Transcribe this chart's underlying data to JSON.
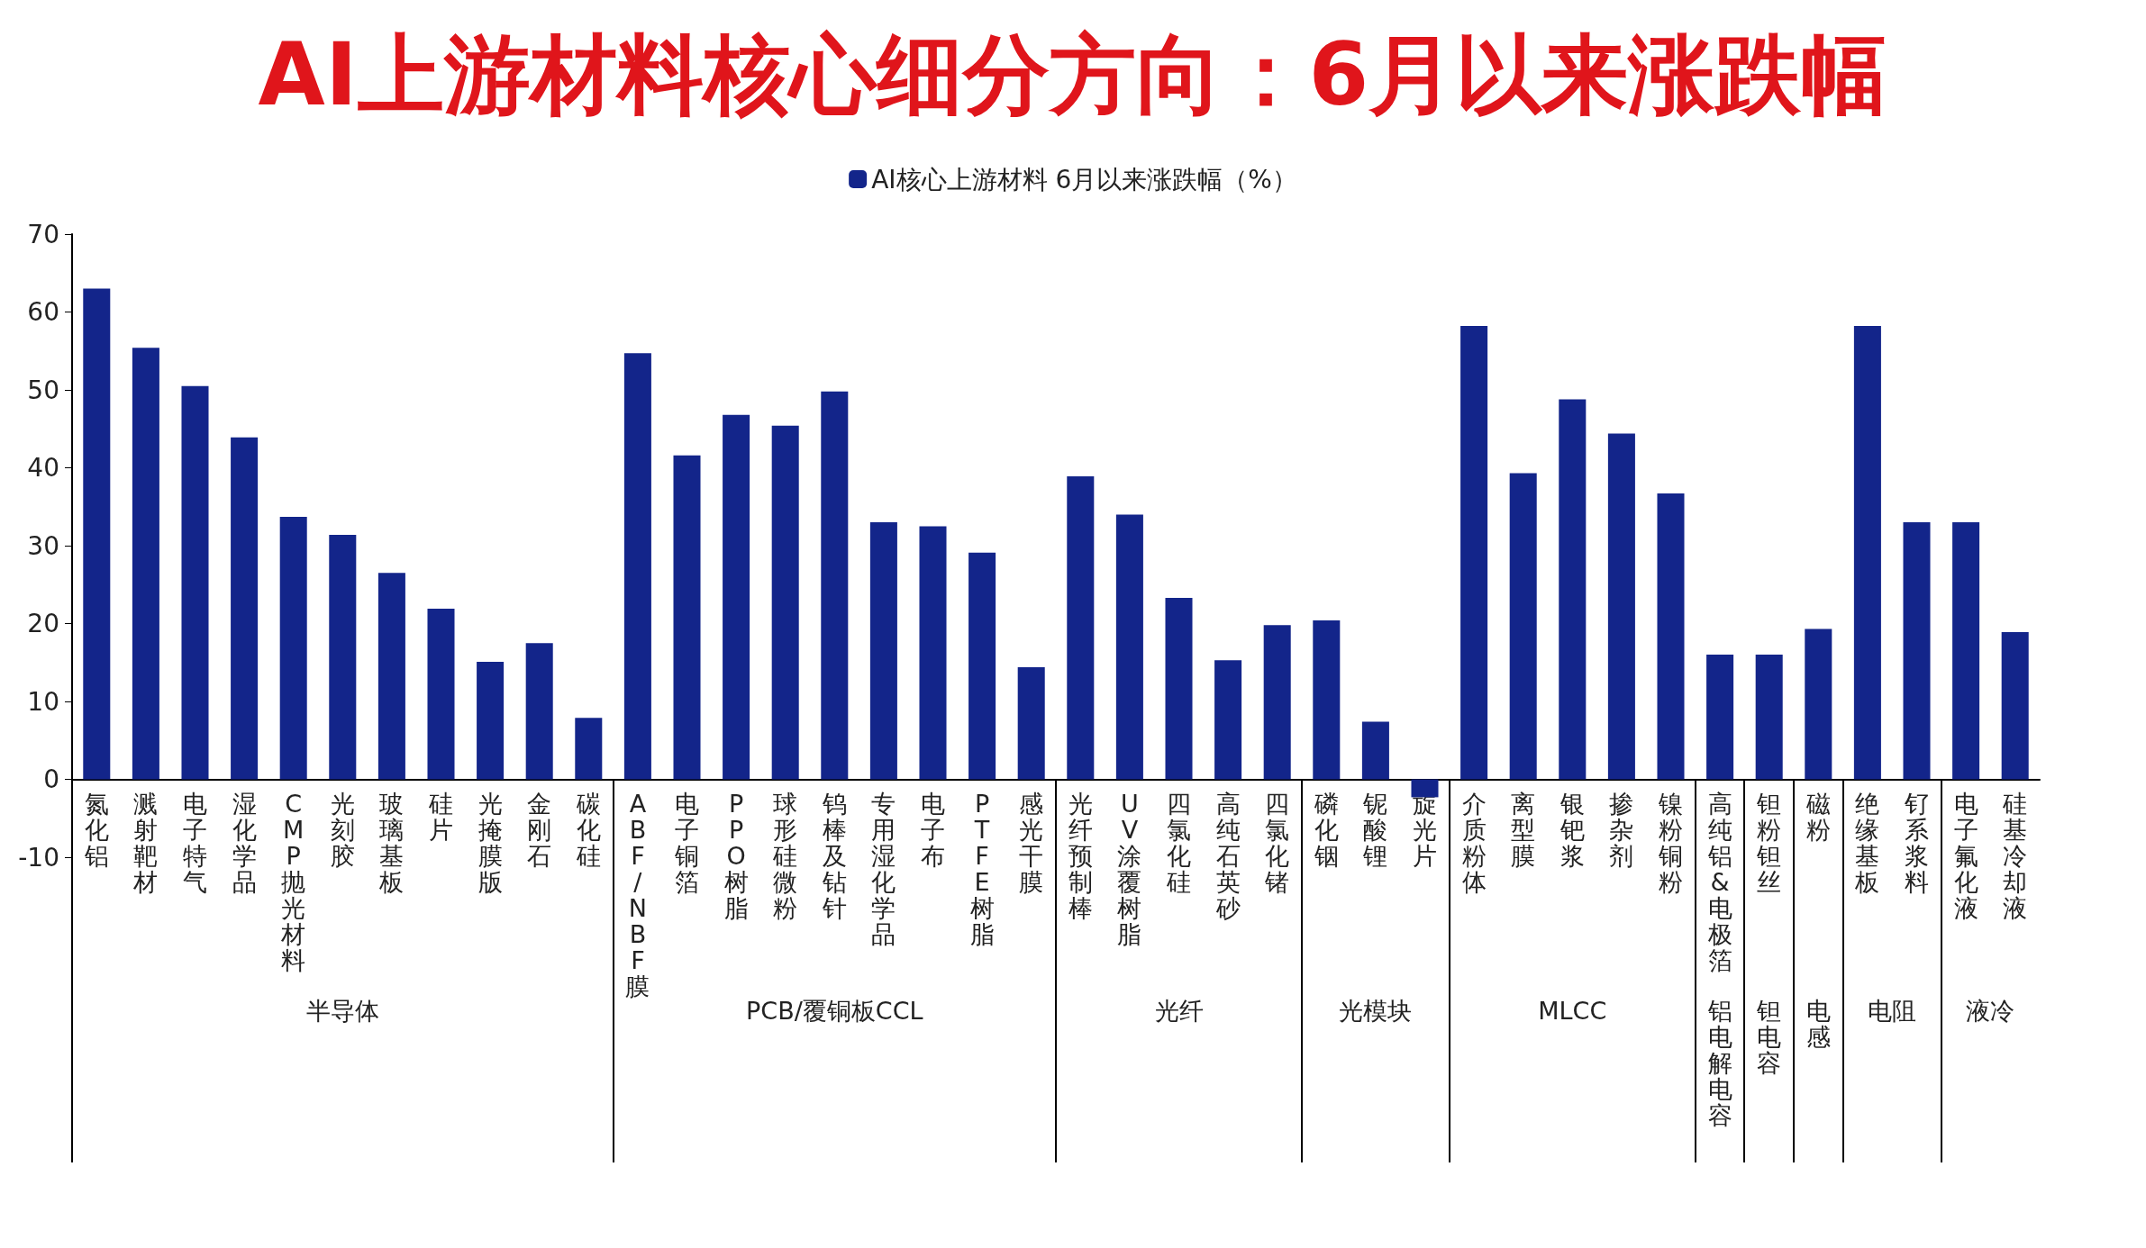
{
  "chart_data": {
    "type": "bar",
    "title": "AI上游材料核心细分方向：6月以来涨跌幅",
    "categories": [
      "氮化铝",
      "溅射靶材",
      "电子特气",
      "湿化学品",
      "CMP抛光材料",
      "光刻胶",
      "玻璃基板",
      "硅片",
      "光掩膜版",
      "金刚石",
      "碳化硅",
      "ABF/NBF膜",
      "电子铜箔",
      "PPO树脂",
      "球形硅微粉",
      "钨棒及钻针",
      "专用湿化学品",
      "电子布",
      "PTFE树脂",
      "感光干膜",
      "光纤预制棒",
      "UV涂覆树脂",
      "四氯化硅",
      "高纯石英砂",
      "四氯化锗",
      "磷化铟",
      "铌酸锂",
      "旋光片",
      "介质粉体",
      "离型膜",
      "银钯浆",
      "掺杂剂",
      "镍粉铜粉",
      "高纯铝&电极箔",
      "钽粉钽丝",
      "磁粉",
      "绝缘基板",
      "钌系浆料",
      "电子氟化液",
      "硅基冷却液"
    ],
    "series": [
      {
        "name": "AI核心上游材料 6月以来涨跌幅（%）",
        "color": "#13258a",
        "values": [
          63.0,
          55.4,
          50.5,
          43.9,
          33.7,
          31.4,
          26.5,
          21.9,
          15.1,
          17.5,
          7.9,
          54.7,
          41.6,
          46.8,
          45.4,
          49.8,
          33.0,
          32.5,
          29.1,
          14.4,
          38.9,
          34.0,
          23.3,
          15.3,
          19.8,
          20.4,
          7.4,
          -2.3,
          58.2,
          39.3,
          48.8,
          44.4,
          36.7,
          16.0,
          16.0,
          19.3,
          58.2,
          33.0,
          33.0,
          18.9
        ]
      }
    ],
    "ylim": [
      -10,
      70
    ],
    "yticks": [
      -10,
      0,
      10,
      20,
      30,
      40,
      50,
      60,
      70
    ],
    "grid": false,
    "legend": "top",
    "annotations": [
      "半导体",
      "PCB/覆铜板CCL",
      "光纤",
      "光模块",
      "MLCC",
      "铝电解电容",
      "钽电容",
      "电感",
      "电阻",
      "液冷"
    ]
  }
}
